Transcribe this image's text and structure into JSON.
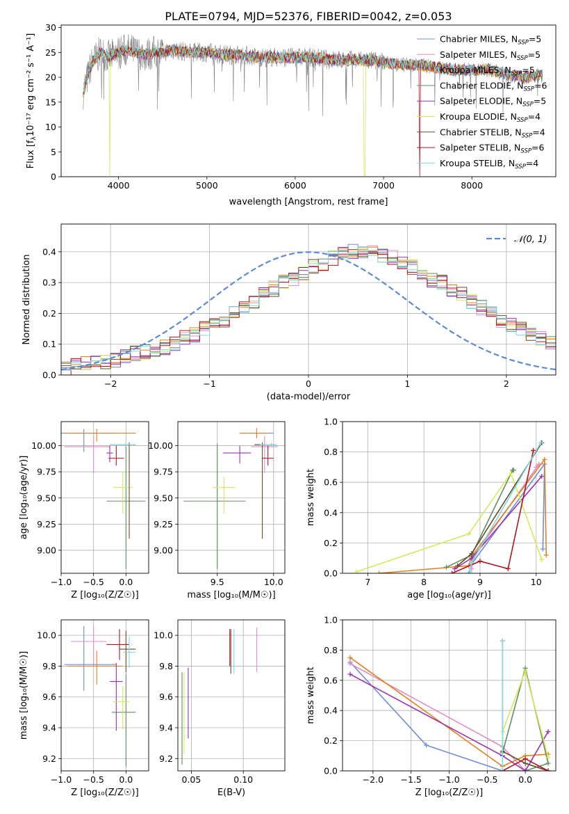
{
  "figure_title": "PLATE=0794, MJD=52376, FIBERID=0042, z=0.053",
  "legend": [
    {
      "name": "Chabrier MILES",
      "nssp": "5",
      "color": "#6a8fd6"
    },
    {
      "name": "Salpeter MILES",
      "nssp": "5",
      "color": "#e38cc8"
    },
    {
      "name": "Kroupa MILES",
      "nssp": "5",
      "color": "#e0801f"
    },
    {
      "name": "Chabrier ELODIE",
      "nssp": "6",
      "color": "#5f8f5f"
    },
    {
      "name": "Salpeter ELODIE",
      "nssp": "5",
      "color": "#9b2fb0"
    },
    {
      "name": "Kroupa ELODIE",
      "nssp": "4",
      "color": "#d6e85a"
    },
    {
      "name": "Chabrier STELIB",
      "nssp": "4",
      "color": "#6b4a2a"
    },
    {
      "name": "Salpeter STELIB",
      "nssp": "6",
      "color": "#b0141c"
    },
    {
      "name": "Kroupa STELIB",
      "nssp": "4",
      "color": "#7fd8e0"
    }
  ],
  "nssp_label": "N",
  "nssp_sub": "SSP",
  "panels": {
    "spectrum": {
      "xlabel": "wavelength [Angstrom, rest frame]",
      "ylabel": "Flux [f",
      "ylabel_sub": "λ",
      "ylabel_rest": "10⁻¹⁷ erg cm⁻² s⁻¹ A⁻¹]",
      "xticks": [
        "4000",
        "5000",
        "6000",
        "7000",
        "8000"
      ],
      "yticks": [
        "0",
        "5",
        "10",
        "15",
        "20",
        "25",
        "30"
      ]
    },
    "residuals": {
      "xlabel": "(data-model)/error",
      "ylabel": "Normed distribution",
      "legend_label": "𝒩(0, 1)",
      "xticks": [
        "−2",
        "−1",
        "0",
        "1",
        "2"
      ],
      "yticks": [
        "0.0",
        "0.1",
        "0.2",
        "0.3",
        "0.4"
      ]
    },
    "zage": {
      "xlabel": "Z [log₁₀(Z/Z☉)]",
      "ylabel": "age  [log₁₀(age/yr)]",
      "xticks": [
        "−1.0",
        "−0.5",
        "0.0"
      ],
      "yticks": [
        "9.00",
        "9.25",
        "9.50",
        "9.75",
        "10.00"
      ]
    },
    "massage": {
      "xlabel": "mass [log₁₀(M/M☉)]",
      "xticks": [
        "9.5",
        "10.0"
      ],
      "yticks": [
        "9.00",
        "9.25",
        "9.50",
        "9.75",
        "10.00"
      ]
    },
    "agew": {
      "xlabel": "age  [log₁₀(age/yr)]",
      "ylabel": "mass weight",
      "xticks": [
        "7",
        "8",
        "9",
        "10"
      ],
      "yticks": [
        "0.0",
        "0.2",
        "0.4",
        "0.6",
        "0.8",
        "1.0"
      ]
    },
    "zmass": {
      "xlabel": "Z [log₁₀(Z/Z☉)]",
      "ylabel": "mass [log₁₀(M/M☉)]",
      "xticks": [
        "−1.0",
        "−0.5",
        "0.0"
      ],
      "yticks": [
        "9.2",
        "9.4",
        "9.6",
        "9.8",
        "10.0"
      ]
    },
    "ebv": {
      "xlabel": "E(B-V)",
      "xticks": [
        "0.05",
        "0.10"
      ],
      "yticks": [
        "9.2",
        "9.4",
        "9.6",
        "9.8",
        "10.0"
      ]
    },
    "zw": {
      "xlabel": "Z [log₁₀(Z/Z☉)]",
      "ylabel": "mass weight",
      "xticks": [
        "−2.0",
        "−1.5",
        "−1.0",
        "−0.5",
        "0.0"
      ],
      "yticks": [
        "0.0",
        "0.2",
        "0.4",
        "0.6",
        "0.8",
        "1.0"
      ]
    }
  },
  "chart_data": [
    {
      "type": "line",
      "title": "PLATE=0794, MJD=52376, FIBERID=0042, z=0.053",
      "xlabel": "wavelength [Angstrom, rest frame]",
      "ylabel": "Flux [fλ 10⁻¹⁷ erg cm⁻² s⁻¹ A⁻¹]",
      "xlim": [
        3350,
        8950
      ],
      "ylim": [
        0,
        30.5
      ],
      "x": [
        3600,
        3700,
        3800,
        3900,
        4000,
        4100,
        4200,
        4300,
        4400,
        4500,
        4600,
        4800,
        5000,
        5200,
        5400,
        5600,
        5800,
        6000,
        6200,
        6400,
        6600,
        6800,
        7000,
        7200,
        7400,
        7600,
        7800,
        8000,
        8200,
        8400,
        8600,
        8800
      ],
      "series": [
        {
          "values": [
            17,
            23,
            25,
            24,
            25,
            25.5,
            25,
            24.5,
            25,
            25,
            25.5,
            25,
            25,
            24.5,
            24.5,
            24,
            24,
            24,
            24,
            23.5,
            23.5,
            23.5,
            23,
            22.5,
            22.5,
            22,
            21.5,
            21.5,
            21.5,
            20.5,
            20,
            20.5
          ]
        }
      ]
    },
    {
      "type": "bar",
      "title": "",
      "xlabel": "(data-model)/error",
      "ylabel": "Normed distribution",
      "xlim": [
        -2.5,
        2.5
      ],
      "ylim": [
        0,
        0.49
      ],
      "bin_edges_start": -2.5,
      "bin_width": 0.1,
      "series": [
        {
          "name": "𝒩(0, 1)",
          "type": "normal",
          "mu": 0,
          "sigma": 1
        }
      ],
      "histogram_values": [
        0.02,
        0.03,
        0.035,
        0.04,
        0.045,
        0.05,
        0.06,
        0.07,
        0.075,
        0.08,
        0.09,
        0.1,
        0.12,
        0.13,
        0.15,
        0.16,
        0.18,
        0.2,
        0.22,
        0.24,
        0.26,
        0.28,
        0.3,
        0.31,
        0.33,
        0.35,
        0.36,
        0.38,
        0.39,
        0.4,
        0.4,
        0.4,
        0.39,
        0.38,
        0.36,
        0.35,
        0.33,
        0.31,
        0.3,
        0.28,
        0.26,
        0.24,
        0.22,
        0.2,
        0.18,
        0.16,
        0.15,
        0.13,
        0.12,
        0.1
      ]
    },
    {
      "type": "scatter",
      "xlabel": "Z [log₁₀(Z/Z☉)]",
      "ylabel": "age  [log₁₀(age/yr)]",
      "xlim": [
        -1.0,
        0.35
      ],
      "ylim": [
        8.78,
        10.23
      ],
      "points": [
        {
          "x": -0.65,
          "xerr": [
            0.35,
            0.5
          ],
          "y": 10.12,
          "yerr": [
            0.18,
            0.04
          ],
          "color": "#6a8fd6"
        },
        {
          "x": -0.5,
          "xerr": [
            0.45,
            0.25
          ],
          "y": 9.99,
          "yerr": [
            0.25,
            0.1
          ],
          "color": "#e38cc8"
        },
        {
          "x": -0.45,
          "xerr": [
            0.5,
            0.6
          ],
          "y": 10.12,
          "yerr": [
            0.08,
            0.04
          ],
          "color": "#e0801f"
        },
        {
          "x": 0.0,
          "xerr": [
            0.3,
            0.3
          ],
          "y": 9.47,
          "yerr": [
            0.65,
            0.55
          ],
          "color": "#5f8f5f"
        },
        {
          "x": -0.25,
          "xerr": [
            0.05,
            0.05
          ],
          "y": 9.93,
          "yerr": [
            0.09,
            0.07
          ],
          "color": "#9b2fb0"
        },
        {
          "x": -0.05,
          "xerr": [
            0.15,
            0.15
          ],
          "y": 9.6,
          "yerr": [
            0.25,
            0.15
          ],
          "color": "#d6e85a"
        },
        {
          "x": 0.05,
          "xerr": [
            0.3,
            0.1
          ],
          "y": 10.01,
          "yerr": [
            0.9,
            0.02
          ],
          "color": "#6b4a2a"
        },
        {
          "x": -0.15,
          "xerr": [
            0.12,
            0.12
          ],
          "y": 9.88,
          "yerr": [
            0.07,
            0.12
          ],
          "color": "#b0141c"
        },
        {
          "x": 0.0,
          "xerr": [
            0.25,
            0.15
          ],
          "y": 10.01,
          "yerr": [
            0.02,
            0.02
          ],
          "color": "#7fd8e0"
        }
      ]
    },
    {
      "type": "scatter",
      "xlabel": "mass [log₁₀(M/M☉)]",
      "ylabel": "",
      "xlim": [
        9.15,
        10.1
      ],
      "ylim": [
        8.78,
        10.23
      ],
      "points": [
        {
          "x": 9.85,
          "xerr": [
            0.15,
            0.15
          ],
          "y": 10.12,
          "yerr": [
            0.05,
            0.05
          ],
          "color": "#6a8fd6"
        },
        {
          "x": 9.92,
          "xerr": [
            0.12,
            0.12
          ],
          "y": 9.99,
          "yerr": [
            0.25,
            0.1
          ],
          "color": "#e38cc8"
        },
        {
          "x": 9.85,
          "xerr": [
            0.15,
            0.1
          ],
          "y": 10.12,
          "yerr": [
            0.05,
            0.05
          ],
          "color": "#e0801f"
        },
        {
          "x": 9.5,
          "xerr": [
            0.3,
            0.25
          ],
          "y": 9.47,
          "yerr": [
            0.65,
            0.55
          ],
          "color": "#5f8f5f"
        },
        {
          "x": 9.7,
          "xerr": [
            0.15,
            0.1
          ],
          "y": 9.93,
          "yerr": [
            0.1,
            0.07
          ],
          "color": "#9b2fb0"
        },
        {
          "x": 9.56,
          "xerr": [
            0.1,
            0.1
          ],
          "y": 9.6,
          "yerr": [
            0.25,
            0.1
          ],
          "color": "#d6e85a"
        },
        {
          "x": 9.9,
          "xerr": [
            0.07,
            0.12
          ],
          "y": 10.01,
          "yerr": [
            0.9,
            0.02
          ],
          "color": "#6b4a2a"
        },
        {
          "x": 9.95,
          "xerr": [
            0.05,
            0.05
          ],
          "y": 9.88,
          "yerr": [
            0.07,
            0.12
          ],
          "color": "#b0141c"
        },
        {
          "x": 9.98,
          "xerr": [
            0.1,
            0.05
          ],
          "y": 10.01,
          "yerr": [
            0.02,
            0.02
          ],
          "color": "#7fd8e0"
        }
      ]
    },
    {
      "type": "line",
      "xlabel": "age  [log₁₀(age/yr)]",
      "ylabel": "mass weight",
      "xlim": [
        6.55,
        10.35
      ],
      "ylim": [
        0,
        1
      ],
      "series": [
        {
          "color": "#6a8fd6",
          "x": [
            8.8,
            8.85,
            10.15,
            10.12
          ],
          "y": [
            0.0,
            0.06,
            0.72,
            0.16
          ]
        },
        {
          "color": "#e38cc8",
          "x": [
            8.85,
            8.87,
            10.05,
            10.0
          ],
          "y": [
            0.03,
            0.1,
            0.72,
            0.7
          ]
        },
        {
          "color": "#e0801f",
          "x": [
            7.2,
            8.8,
            8.85,
            10.15,
            10.18
          ],
          "y": [
            0.0,
            0.05,
            0.11,
            0.75,
            0.12
          ]
        },
        {
          "color": "#5f8f5f",
          "x": [
            8.4,
            8.85,
            9.58,
            9.6
          ],
          "y": [
            0.04,
            0.12,
            0.68,
            0.68
          ]
        },
        {
          "color": "#9b2fb0",
          "x": [
            8.55,
            8.85,
            10.1
          ],
          "y": [
            0.03,
            0.1,
            0.64
          ]
        },
        {
          "color": "#d6e85a",
          "x": [
            6.8,
            8.8,
            9.55,
            10.1
          ],
          "y": [
            0.01,
            0.26,
            0.66,
            0.09
          ]
        },
        {
          "color": "#6b4a2a",
          "x": [
            8.6,
            8.85,
            10.1
          ],
          "y": [
            0.05,
            0.13,
            0.86
          ]
        },
        {
          "color": "#b0141c",
          "x": [
            8.5,
            9.0,
            9.5,
            9.95
          ],
          "y": [
            0.0,
            0.08,
            0.03,
            0.81
          ]
        },
        {
          "color": "#7fd8e0",
          "x": [
            8.82,
            8.85,
            10.08
          ],
          "y": [
            0.01,
            0.07,
            0.86
          ]
        }
      ]
    },
    {
      "type": "scatter",
      "xlabel": "Z [log₁₀(Z/Z☉)]",
      "ylabel": "mass [log₁₀(M/M☉)]",
      "xlim": [
        -1.0,
        0.35
      ],
      "ylim": [
        9.12,
        10.1
      ],
      "points": [
        {
          "x": -0.65,
          "xerr": [
            0.3,
            0.5
          ],
          "y": 9.81,
          "yerr": [
            0.17,
            0.25
          ],
          "color": "#6a8fd6"
        },
        {
          "x": -0.5,
          "xerr": [
            0.35,
            0.2
          ],
          "y": 9.96,
          "yerr": [
            0.15,
            0.1
          ],
          "color": "#e38cc8"
        },
        {
          "x": -0.45,
          "xerr": [
            0.45,
            0.4
          ],
          "y": 9.8,
          "yerr": [
            0.12,
            0.1
          ],
          "color": "#e0801f"
        },
        {
          "x": 0.0,
          "xerr": [
            0.22,
            0.15
          ],
          "y": 9.5,
          "yerr": [
            0.35,
            0.25
          ],
          "color": "#5f8f5f"
        },
        {
          "x": -0.15,
          "xerr": [
            0.1,
            0.1
          ],
          "y": 9.7,
          "yerr": [
            0.32,
            0.12
          ],
          "color": "#9b2fb0"
        },
        {
          "x": -0.05,
          "xerr": [
            0.15,
            0.1
          ],
          "y": 9.57,
          "yerr": [
            0.18,
            0.1
          ],
          "color": "#d6e85a"
        },
        {
          "x": 0.0,
          "xerr": [
            0.1,
            0.15
          ],
          "y": 9.91,
          "yerr": [
            0.15,
            0.12
          ],
          "color": "#6b4a2a"
        },
        {
          "x": -0.1,
          "xerr": [
            0.2,
            0.15
          ],
          "y": 9.94,
          "yerr": [
            0.1,
            0.1
          ],
          "color": "#b0141c"
        },
        {
          "x": 0.05,
          "xerr": [
            0.08,
            0.1
          ],
          "y": 9.89,
          "yerr": [
            0.1,
            0.1
          ],
          "color": "#7fd8e0"
        }
      ]
    },
    {
      "type": "scatter",
      "xlabel": "E(B-V)",
      "ylabel": "",
      "xlim": [
        0.037,
        0.14
      ],
      "ylim": [
        9.12,
        10.1
      ],
      "points": [
        {
          "x": 0.14,
          "y": 9.72,
          "yerr": [
            0.1,
            0.34
          ],
          "color": "#6a8fd6"
        },
        {
          "x": 0.113,
          "y": 9.91,
          "yerr": [
            0.15,
            0.14
          ],
          "color": "#e38cc8"
        },
        {
          "x": 0.14,
          "y": 9.82,
          "yerr": [
            0.2,
            0.15
          ],
          "color": "#e0801f"
        },
        {
          "x": 0.041,
          "y": 9.46,
          "yerr": [
            0.3,
            0.3
          ],
          "color": "#5f8f5f"
        },
        {
          "x": 0.047,
          "y": 9.51,
          "yerr": [
            0.18,
            0.28
          ],
          "color": "#9b2fb0"
        },
        {
          "x": 0.043,
          "y": 9.48,
          "yerr": [
            0.25,
            0.28
          ],
          "color": "#d6e85a"
        },
        {
          "x": 0.088,
          "y": 9.9,
          "yerr": [
            0.15,
            0.14
          ],
          "color": "#6b4a2a"
        },
        {
          "x": 0.087,
          "y": 9.92,
          "yerr": [
            0.12,
            0.12
          ],
          "color": "#b0141c"
        },
        {
          "x": 0.091,
          "y": 9.9,
          "yerr": [
            0.15,
            0.14
          ],
          "color": "#7fd8e0"
        }
      ]
    },
    {
      "type": "line",
      "xlabel": "Z [log₁₀(Z/Z☉)]",
      "ylabel": "mass weight",
      "xlim": [
        -2.4,
        0.4
      ],
      "ylim": [
        0,
        1
      ],
      "series": [
        {
          "color": "#6a8fd6",
          "x": [
            -2.3,
            -1.3,
            -0.3,
            0.0
          ],
          "y": [
            0.72,
            0.17,
            0.0,
            0.0
          ]
        },
        {
          "color": "#e38cc8",
          "x": [
            -2.3,
            -0.3,
            0.0
          ],
          "y": [
            0.71,
            0.16,
            0.0
          ]
        },
        {
          "color": "#e0801f",
          "x": [
            -2.3,
            -0.3,
            0.0,
            0.3
          ],
          "y": [
            0.75,
            0.03,
            0.1,
            0.11
          ]
        },
        {
          "color": "#5f8f5f",
          "x": [
            -0.3,
            0.0,
            0.3,
            0.0
          ],
          "y": [
            0.12,
            0.68,
            0.05,
            0.0
          ]
        },
        {
          "color": "#9b2fb0",
          "x": [
            -2.3,
            -0.3,
            0.0,
            0.3
          ],
          "y": [
            0.64,
            0.1,
            0.0,
            0.26
          ]
        },
        {
          "color": "#d6e85a",
          "x": [
            -0.3,
            0.0,
            0.3
          ],
          "y": [
            0.26,
            0.66,
            0.09
          ]
        },
        {
          "color": "#6b4a2a",
          "x": [
            -0.3,
            -0.3,
            0.0,
            0.3
          ],
          "y": [
            0.86,
            0.13,
            0.05,
            0.0
          ]
        },
        {
          "color": "#b0141c",
          "x": [
            -0.3,
            0.0,
            0.3
          ],
          "y": [
            0.0,
            0.08,
            0.0
          ]
        },
        {
          "color": "#7fd8e0",
          "x": [
            -0.3,
            -0.3
          ],
          "y": [
            0.86,
            0.0
          ]
        }
      ]
    }
  ]
}
